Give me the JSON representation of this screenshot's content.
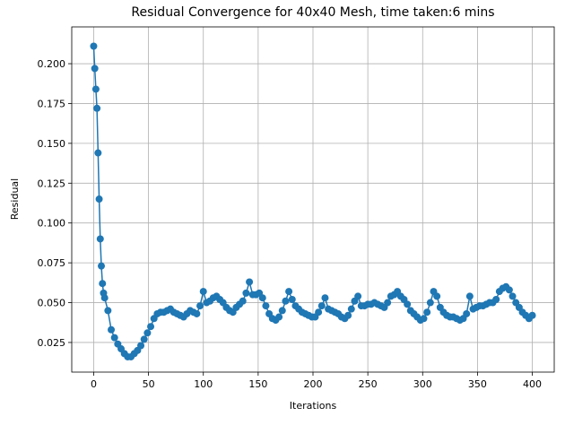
{
  "chart_data": {
    "type": "line",
    "title": "Residual Convergence for 40x40 Mesh, time taken:6 mins",
    "x_label": "Iterations",
    "y_label": "Residual",
    "color": "#1f77b4",
    "grid": true,
    "markers": true,
    "x": [
      0,
      1,
      2,
      3,
      4,
      5,
      6,
      7,
      8,
      9,
      10,
      13,
      16,
      19,
      22,
      25,
      28,
      31,
      34,
      37,
      40,
      43,
      46,
      49,
      52,
      55,
      58,
      61,
      64,
      67,
      70,
      73,
      76,
      79,
      82,
      85,
      88,
      91,
      94,
      97,
      100,
      103,
      106,
      109,
      112,
      115,
      118,
      121,
      124,
      127,
      130,
      133,
      136,
      139,
      142,
      145,
      148,
      151,
      154,
      157,
      160,
      163,
      166,
      169,
      172,
      175,
      178,
      181,
      184,
      187,
      190,
      193,
      196,
      199,
      202,
      205,
      208,
      211,
      214,
      217,
      220,
      223,
      226,
      229,
      232,
      235,
      238,
      241,
      244,
      247,
      250,
      253,
      256,
      259,
      262,
      265,
      268,
      271,
      274,
      277,
      280,
      283,
      286,
      289,
      292,
      295,
      298,
      301,
      304,
      307,
      310,
      313,
      316,
      319,
      322,
      325,
      328,
      331,
      334,
      337,
      340,
      343,
      346,
      349,
      352,
      355,
      358,
      361,
      364,
      367,
      370,
      373,
      376,
      379,
      382,
      385,
      388,
      391,
      394,
      397,
      400
    ],
    "values": [
      0.211,
      0.197,
      0.184,
      0.172,
      0.144,
      0.115,
      0.09,
      0.073,
      0.062,
      0.056,
      0.053,
      0.045,
      0.033,
      0.028,
      0.024,
      0.021,
      0.018,
      0.016,
      0.016,
      0.018,
      0.02,
      0.023,
      0.027,
      0.031,
      0.035,
      0.04,
      0.043,
      0.044,
      0.044,
      0.045,
      0.046,
      0.044,
      0.043,
      0.042,
      0.041,
      0.043,
      0.045,
      0.044,
      0.043,
      0.048,
      0.057,
      0.05,
      0.051,
      0.053,
      0.054,
      0.052,
      0.05,
      0.047,
      0.045,
      0.044,
      0.047,
      0.049,
      0.051,
      0.056,
      0.063,
      0.055,
      0.055,
      0.056,
      0.053,
      0.048,
      0.043,
      0.04,
      0.039,
      0.041,
      0.045,
      0.051,
      0.057,
      0.052,
      0.048,
      0.046,
      0.044,
      0.043,
      0.042,
      0.041,
      0.041,
      0.044,
      0.048,
      0.053,
      0.046,
      0.045,
      0.044,
      0.043,
      0.041,
      0.04,
      0.042,
      0.046,
      0.051,
      0.054,
      0.048,
      0.048,
      0.049,
      0.049,
      0.05,
      0.049,
      0.048,
      0.047,
      0.05,
      0.054,
      0.055,
      0.057,
      0.054,
      0.052,
      0.049,
      0.045,
      0.043,
      0.041,
      0.039,
      0.04,
      0.044,
      0.05,
      0.057,
      0.054,
      0.047,
      0.044,
      0.042,
      0.041,
      0.041,
      0.04,
      0.039,
      0.04,
      0.043,
      0.054,
      0.046,
      0.047,
      0.048,
      0.048,
      0.049,
      0.05,
      0.05,
      0.052,
      0.057,
      0.059,
      0.06,
      0.058,
      0.054,
      0.05,
      0.047,
      0.044,
      0.042,
      0.04,
      0.042
    ],
    "xlim": [
      -20,
      420
    ],
    "xticks": [
      0,
      50,
      100,
      150,
      200,
      250,
      300,
      350,
      400
    ],
    "ylim": [
      0.0064,
      0.2231
    ],
    "yticks": [
      0.025,
      {
        "value": 0.05,
        "label": "0.050"
      },
      0.075,
      {
        "value": 0.1,
        "label": "0.100"
      },
      0.125,
      {
        "value": 0.15,
        "label": "0.150"
      },
      0.175,
      {
        "value": 0.2,
        "label": "0.200"
      }
    ]
  }
}
